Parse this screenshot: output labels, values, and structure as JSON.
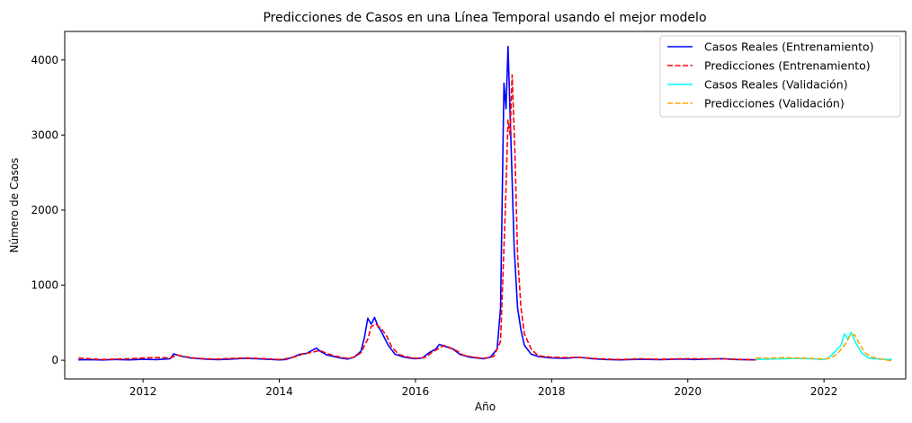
{
  "chart_data": {
    "type": "line",
    "title": "Predicciones de Casos en una Línea Temporal usando el mejor modelo",
    "xlabel": "Año",
    "ylabel": "Número de Casos",
    "xlim": [
      2010.85,
      2023.2
    ],
    "ylim": [
      -250,
      4380
    ],
    "x_ticks": [
      2012,
      2014,
      2016,
      2018,
      2020,
      2022
    ],
    "y_ticks": [
      0,
      1000,
      2000,
      3000,
      4000
    ],
    "grid": false,
    "legend_position": "top-right",
    "series": [
      {
        "name": "Casos Reales (Entrenamiento)",
        "color": "#0000ff",
        "style": "solid",
        "points": [
          [
            2011.05,
            5
          ],
          [
            2011.2,
            8
          ],
          [
            2011.4,
            3
          ],
          [
            2011.6,
            10
          ],
          [
            2011.8,
            5
          ],
          [
            2012.0,
            12
          ],
          [
            2012.2,
            8
          ],
          [
            2012.4,
            20
          ],
          [
            2012.45,
            85
          ],
          [
            2012.55,
            55
          ],
          [
            2012.7,
            30
          ],
          [
            2012.9,
            15
          ],
          [
            2013.1,
            8
          ],
          [
            2013.3,
            15
          ],
          [
            2013.5,
            25
          ],
          [
            2013.7,
            18
          ],
          [
            2013.9,
            10
          ],
          [
            2014.0,
            5
          ],
          [
            2014.1,
            10
          ],
          [
            2014.2,
            40
          ],
          [
            2014.3,
            80
          ],
          [
            2014.4,
            90
          ],
          [
            2014.5,
            140
          ],
          [
            2014.55,
            160
          ],
          [
            2014.6,
            120
          ],
          [
            2014.7,
            70
          ],
          [
            2014.8,
            50
          ],
          [
            2014.9,
            30
          ],
          [
            2015.0,
            15
          ],
          [
            2015.1,
            40
          ],
          [
            2015.2,
            120
          ],
          [
            2015.25,
            300
          ],
          [
            2015.3,
            560
          ],
          [
            2015.35,
            480
          ],
          [
            2015.4,
            570
          ],
          [
            2015.45,
            450
          ],
          [
            2015.5,
            380
          ],
          [
            2015.6,
            200
          ],
          [
            2015.7,
            80
          ],
          [
            2015.8,
            50
          ],
          [
            2015.9,
            30
          ],
          [
            2016.0,
            20
          ],
          [
            2016.1,
            30
          ],
          [
            2016.2,
            100
          ],
          [
            2016.3,
            150
          ],
          [
            2016.35,
            210
          ],
          [
            2016.45,
            180
          ],
          [
            2016.55,
            150
          ],
          [
            2016.65,
            80
          ],
          [
            2016.8,
            40
          ],
          [
            2016.9,
            30
          ],
          [
            2017.0,
            20
          ],
          [
            2017.1,
            40
          ],
          [
            2017.2,
            150
          ],
          [
            2017.25,
            700
          ],
          [
            2017.3,
            3690
          ],
          [
            2017.33,
            3350
          ],
          [
            2017.36,
            4180
          ],
          [
            2017.4,
            3000
          ],
          [
            2017.45,
            1500
          ],
          [
            2017.5,
            700
          ],
          [
            2017.55,
            400
          ],
          [
            2017.6,
            200
          ],
          [
            2017.7,
            80
          ],
          [
            2017.8,
            50
          ],
          [
            2018.0,
            30
          ],
          [
            2018.2,
            25
          ],
          [
            2018.4,
            40
          ],
          [
            2018.6,
            20
          ],
          [
            2018.8,
            10
          ],
          [
            2019.0,
            5
          ],
          [
            2019.3,
            12
          ],
          [
            2019.6,
            8
          ],
          [
            2019.9,
            15
          ],
          [
            2020.1,
            10
          ],
          [
            2020.3,
            15
          ],
          [
            2020.5,
            20
          ],
          [
            2020.7,
            10
          ],
          [
            2021.0,
            5
          ]
        ]
      },
      {
        "name": "Predicciones (Entrenamiento)",
        "color": "#ff0000",
        "style": "dashed",
        "points": [
          [
            2011.05,
            30
          ],
          [
            2011.2,
            20
          ],
          [
            2011.4,
            10
          ],
          [
            2011.6,
            15
          ],
          [
            2011.8,
            20
          ],
          [
            2012.0,
            30
          ],
          [
            2012.2,
            35
          ],
          [
            2012.4,
            30
          ],
          [
            2012.5,
            70
          ],
          [
            2012.6,
            50
          ],
          [
            2012.75,
            30
          ],
          [
            2012.9,
            20
          ],
          [
            2013.1,
            15
          ],
          [
            2013.3,
            25
          ],
          [
            2013.5,
            30
          ],
          [
            2013.7,
            25
          ],
          [
            2013.9,
            15
          ],
          [
            2014.0,
            10
          ],
          [
            2014.1,
            20
          ],
          [
            2014.25,
            50
          ],
          [
            2014.35,
            85
          ],
          [
            2014.45,
            100
          ],
          [
            2014.6,
            130
          ],
          [
            2014.7,
            90
          ],
          [
            2014.8,
            60
          ],
          [
            2014.9,
            40
          ],
          [
            2015.0,
            25
          ],
          [
            2015.1,
            40
          ],
          [
            2015.2,
            100
          ],
          [
            2015.3,
            280
          ],
          [
            2015.35,
            450
          ],
          [
            2015.42,
            480
          ],
          [
            2015.5,
            420
          ],
          [
            2015.58,
            320
          ],
          [
            2015.65,
            180
          ],
          [
            2015.75,
            80
          ],
          [
            2015.85,
            50
          ],
          [
            2015.95,
            30
          ],
          [
            2016.05,
            25
          ],
          [
            2016.15,
            40
          ],
          [
            2016.25,
            110
          ],
          [
            2016.35,
            160
          ],
          [
            2016.42,
            200
          ],
          [
            2016.5,
            170
          ],
          [
            2016.6,
            130
          ],
          [
            2016.7,
            70
          ],
          [
            2016.85,
            40
          ],
          [
            2017.0,
            25
          ],
          [
            2017.15,
            50
          ],
          [
            2017.25,
            250
          ],
          [
            2017.32,
            2000
          ],
          [
            2017.36,
            3200
          ],
          [
            2017.39,
            3000
          ],
          [
            2017.42,
            3800
          ],
          [
            2017.46,
            2800
          ],
          [
            2017.5,
            1400
          ],
          [
            2017.55,
            700
          ],
          [
            2017.6,
            350
          ],
          [
            2017.7,
            150
          ],
          [
            2017.8,
            60
          ],
          [
            2018.0,
            40
          ],
          [
            2018.2,
            35
          ],
          [
            2018.4,
            40
          ],
          [
            2018.6,
            25
          ],
          [
            2018.8,
            15
          ],
          [
            2019.0,
            10
          ],
          [
            2019.3,
            20
          ],
          [
            2019.6,
            12
          ],
          [
            2019.9,
            20
          ],
          [
            2020.1,
            20
          ],
          [
            2020.3,
            18
          ],
          [
            2020.5,
            20
          ],
          [
            2020.7,
            12
          ],
          [
            2021.0,
            5
          ]
        ]
      },
      {
        "name": "Casos Reales (Validación)",
        "color": "#00ffff",
        "style": "solid",
        "points": [
          [
            2021.0,
            10
          ],
          [
            2021.2,
            15
          ],
          [
            2021.4,
            20
          ],
          [
            2021.6,
            25
          ],
          [
            2021.8,
            20
          ],
          [
            2022.0,
            10
          ],
          [
            2022.05,
            20
          ],
          [
            2022.15,
            100
          ],
          [
            2022.25,
            200
          ],
          [
            2022.3,
            350
          ],
          [
            2022.35,
            280
          ],
          [
            2022.4,
            370
          ],
          [
            2022.45,
            260
          ],
          [
            2022.55,
            100
          ],
          [
            2022.65,
            30
          ],
          [
            2022.8,
            15
          ],
          [
            2023.0,
            10
          ]
        ]
      },
      {
        "name": "Predicciones (Validación)",
        "color": "#ffa500",
        "style": "dashed",
        "points": [
          [
            2021.0,
            30
          ],
          [
            2021.2,
            25
          ],
          [
            2021.4,
            35
          ],
          [
            2021.6,
            30
          ],
          [
            2021.8,
            25
          ],
          [
            2022.0,
            15
          ],
          [
            2022.1,
            30
          ],
          [
            2022.2,
            90
          ],
          [
            2022.3,
            200
          ],
          [
            2022.38,
            320
          ],
          [
            2022.45,
            340
          ],
          [
            2022.5,
            250
          ],
          [
            2022.6,
            100
          ],
          [
            2022.7,
            40
          ],
          [
            2022.85,
            15
          ],
          [
            2023.0,
            -10
          ]
        ]
      }
    ]
  }
}
